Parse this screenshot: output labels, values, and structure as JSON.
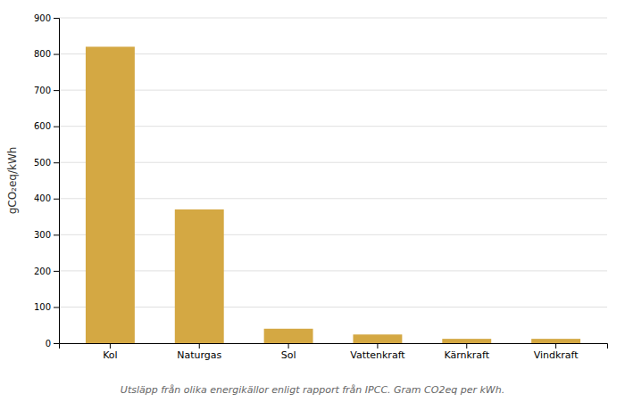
{
  "chart_data": {
    "type": "bar",
    "categories": [
      "Kol",
      "Naturgas",
      "Sol",
      "Vattenkraft",
      "Kärnkraft",
      "Vindkraft"
    ],
    "values": [
      820,
      370,
      40,
      24,
      12,
      12
    ],
    "color": "#D4A843",
    "ylabel": "gCO₂eq/kWh",
    "caption": "Utsläpp från olika energikällor enligt rapport från IPCC. Gram CO2eq per kWh.",
    "ylim": [
      0,
      900
    ],
    "yticks": [
      0,
      100,
      200,
      300,
      400,
      500,
      600,
      700,
      800,
      900
    ],
    "grid": true
  }
}
